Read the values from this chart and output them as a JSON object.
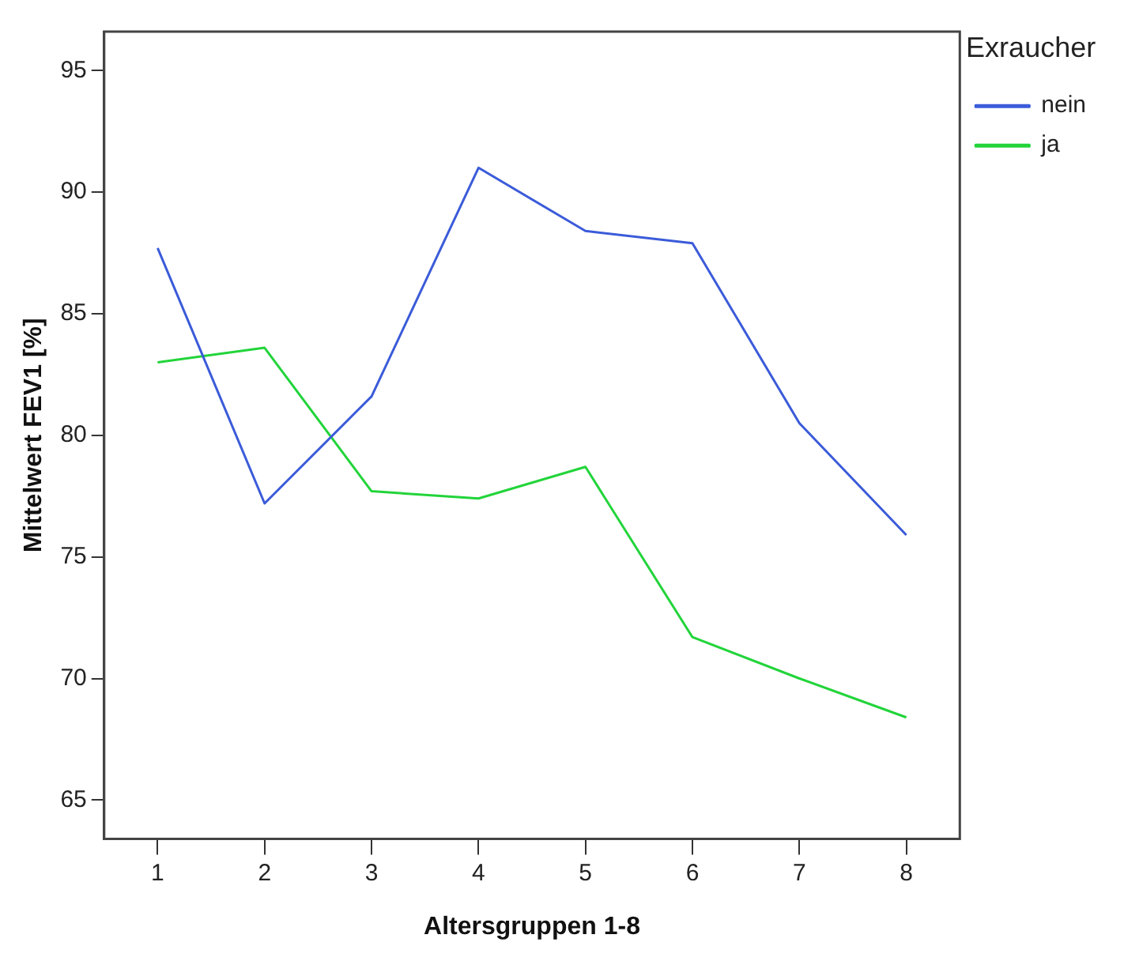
{
  "chart_data": {
    "type": "line",
    "xlabel": "Altersgruppen 1-8",
    "ylabel": "Mittelwert FEV1 [%]",
    "legend_title": "Exraucher",
    "categories": [
      "1",
      "2",
      "3",
      "4",
      "5",
      "6",
      "7",
      "8"
    ],
    "series": [
      {
        "name": "nein",
        "color": "#3b5bd9",
        "values": [
          87.7,
          77.2,
          81.6,
          91.0,
          88.4,
          87.9,
          80.5,
          75.9
        ]
      },
      {
        "name": "ja",
        "color": "#22d43a",
        "values": [
          83.0,
          83.6,
          77.7,
          77.4,
          78.7,
          71.7,
          70.0,
          68.4
        ]
      }
    ],
    "ylim": [
      63.4,
      96.6
    ],
    "yticks": [
      65,
      70,
      75,
      80,
      85,
      90,
      95
    ],
    "grid": false,
    "legend": "top right",
    "marker": "none",
    "line_style": "solid"
  }
}
